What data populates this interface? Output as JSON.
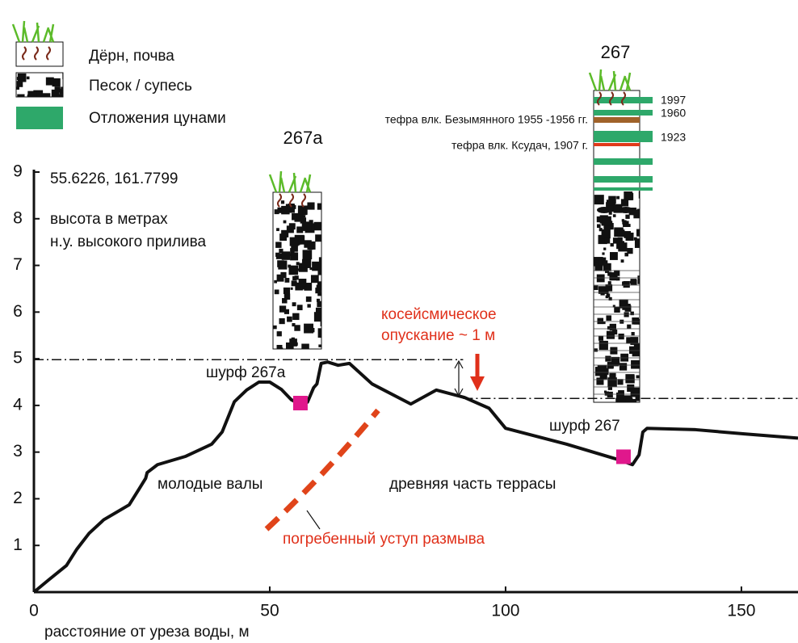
{
  "chart_data": {
    "type": "line",
    "coordinates": "55.6226, 161.7799",
    "ylabel": [
      "высота в метрах",
      "н.у. высокого прилива"
    ],
    "xlabel": "расстояние от уреза воды, м",
    "xlim": [
      0,
      162
    ],
    "ylim": [
      0,
      9
    ],
    "xticks": [
      0,
      50,
      100,
      150
    ],
    "yticks": [
      1,
      2,
      3,
      4,
      5,
      6,
      7,
      8,
      9
    ],
    "color": "#111111",
    "x": [
      0,
      3.1,
      6.9,
      9.1,
      11.7,
      14.8,
      20.2,
      22.3,
      23.7,
      24,
      26.2,
      32.2,
      37.7,
      39.9,
      42.5,
      45.1,
      47.7,
      50,
      52.5,
      54.6,
      56.3,
      58,
      59.3,
      60,
      60.9,
      62.3,
      64.5,
      66.9,
      71.7,
      79.9,
      85.3,
      91.3,
      96.5,
      100,
      112.9,
      124.5,
      126.9,
      128.3,
      129.1,
      130,
      140.3,
      150.6,
      162
    ],
    "values": [
      0,
      0.26,
      0.57,
      0.92,
      1.26,
      1.55,
      1.87,
      2.21,
      2.44,
      2.56,
      2.73,
      2.91,
      3.17,
      3.43,
      4.08,
      4.33,
      4.5,
      4.5,
      4.34,
      4.12,
      4.03,
      4.07,
      4.38,
      4.46,
      4.9,
      4.93,
      4.86,
      4.9,
      4.46,
      4.03,
      4.33,
      4.17,
      3.94,
      3.51,
      3.17,
      2.82,
      2.73,
      2.94,
      3.43,
      3.51,
      3.48,
      3.39,
      3.3
    ],
    "levels": [
      {
        "value": 4.98,
        "from": 0,
        "to": 91
      },
      {
        "value": 4.15,
        "from": 91,
        "to": 162
      }
    ],
    "subsidence_label": [
      "косейсмическое",
      "опускание ~ 1 м"
    ],
    "pits": [
      {
        "label": "шурф 267а",
        "x": 56.5,
        "y": 4.05
      },
      {
        "label": "шурф 267",
        "x": 125,
        "y": 2.9
      }
    ],
    "pit_color": "#e0188c",
    "regions": [
      "молодые валы",
      "древняя часть террасы"
    ],
    "scarp_label": "погребенный уступ размыва",
    "legend": [
      "Дёрн, почва",
      "Песок / супесь",
      "Отложения цунами"
    ],
    "columns": [
      "267а",
      "267"
    ],
    "tephra": [
      "тефра влк. Безымянного 1955 -1956 гг.",
      "тефра влк. Ксудач, 1907 г."
    ],
    "tsunami_years": [
      "1997",
      "1960",
      "1923"
    ]
  }
}
